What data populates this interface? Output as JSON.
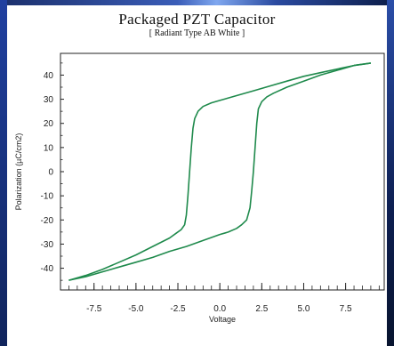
{
  "chart_data": {
    "type": "line",
    "title": "Packaged PZT Capacitor",
    "subtitle": "[ Radiant Type AB White ]",
    "xlabel": "Voltage",
    "ylabel": "Polarization (µC/cm2)",
    "xlim": [
      -9.5,
      9.8
    ],
    "ylim": [
      -49,
      49
    ],
    "x_ticks": [
      -7.5,
      -5.0,
      -2.5,
      0.0,
      2.5,
      5.0,
      7.5
    ],
    "x_tick_labels": [
      "-7.5",
      "-5.0",
      "-2.5",
      "0.0",
      "2.5",
      "5.0",
      "7.5"
    ],
    "y_ticks": [
      40,
      30,
      20,
      10,
      0,
      -10,
      -20,
      -30,
      -40
    ],
    "y_tick_labels": [
      "40",
      "30",
      "20",
      "10",
      "0",
      "-10",
      "-20",
      "-30",
      "-40"
    ],
    "grid": false,
    "line_color": "#1f8a4c",
    "series": [
      {
        "x": [
          9.0,
          8.0,
          7.0,
          6.0,
          5.0,
          4.0,
          3.0,
          2.0,
          1.0,
          0.0,
          -0.5,
          -1.0,
          -1.3,
          -1.5,
          -1.6,
          -1.7,
          -1.8,
          -1.9,
          -2.0,
          -2.1,
          -2.3,
          -2.6,
          -3.0,
          -4.0,
          -5.0,
          -6.0,
          -7.0,
          -8.0,
          -9.0
        ],
        "y": [
          45,
          44,
          42.5,
          41,
          39.5,
          37.5,
          35.5,
          33.5,
          31.5,
          29.5,
          28.5,
          27,
          25,
          22,
          18,
          10,
          0,
          -10,
          -18,
          -22,
          -24,
          -25.5,
          -27.5,
          -31,
          -34.5,
          -37.5,
          -40.5,
          -43,
          -45
        ]
      },
      {
        "x": [
          -9.0,
          -8.0,
          -7.0,
          -6.0,
          -5.0,
          -4.0,
          -3.0,
          -2.0,
          -1.0,
          0.0,
          0.5,
          1.0,
          1.3,
          1.6,
          1.8,
          1.9,
          2.0,
          2.1,
          2.2,
          2.3,
          2.5,
          2.8,
          3.2,
          4.0,
          5.0,
          6.0,
          7.0,
          8.0,
          9.0
        ],
        "y": [
          -45,
          -43.5,
          -41.5,
          -39.5,
          -37.5,
          -35.5,
          -33,
          -31,
          -28.5,
          -26,
          -25,
          -23.5,
          -22,
          -20,
          -15,
          -8,
          0,
          10,
          20,
          26,
          29,
          31,
          32.5,
          35,
          37.5,
          40,
          42,
          44,
          45
        ]
      }
    ]
  }
}
